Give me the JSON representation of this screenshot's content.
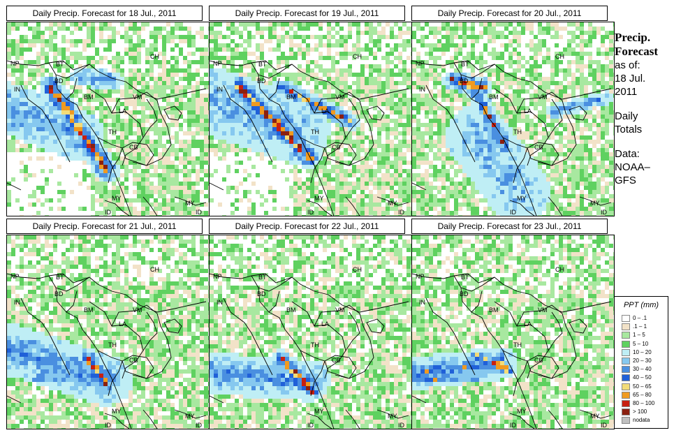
{
  "panels": [
    {
      "title": "Daily Precip. Forecast for  18 Jul., 2011",
      "pattern": "day18"
    },
    {
      "title": "Daily Precip. Forecast for  19 Jul., 2011",
      "pattern": "day19"
    },
    {
      "title": "Daily Precip. Forecast for  20 Jul., 2011",
      "pattern": "day20"
    },
    {
      "title": "Daily Precip. Forecast for  21 Jul., 2011",
      "pattern": "day21"
    },
    {
      "title": "Daily Precip. Forecast for  22 Jul., 2011",
      "pattern": "day22"
    },
    {
      "title": "Daily Precip. Forecast for  23 Jul., 2011",
      "pattern": "day23"
    }
  ],
  "region_labels": {
    "ch": "CH",
    "np": "NP",
    "bt": "BT",
    "bd": "BD",
    "in": "IN",
    "bm": "BM",
    "vm": "VM",
    "la": "LA",
    "th": "TH",
    "cb": "CB",
    "my": "MY",
    "my2": "MY",
    "id": "ID",
    "id2": "ID"
  },
  "side": {
    "title_line1": "Precip.",
    "title_line2": "Forecast",
    "asof": "as of:",
    "date1": "18 Jul.",
    "date2": "2011",
    "daily1": "Daily",
    "daily2": "Totals",
    "data1": "Data:",
    "data2": "NOAA–",
    "data3": "GFS"
  },
  "legend": {
    "title": "PPT (mm)",
    "items": [
      {
        "label": "0 – .1",
        "color": "#ffffff"
      },
      {
        "label": ".1 – 1",
        "color": "#f2e2c8"
      },
      {
        "label": "1 – 5",
        "color": "#a8e8a0"
      },
      {
        "label": "5 – 10",
        "color": "#5fd160"
      },
      {
        "label": "10 – 20",
        "color": "#bfeef5"
      },
      {
        "label": "20 – 30",
        "color": "#86c8ef"
      },
      {
        "label": "30 – 40",
        "color": "#4a8fe0"
      },
      {
        "label": "40 – 50",
        "color": "#2060d8"
      },
      {
        "label": "50 – 65",
        "color": "#f3dc78"
      },
      {
        "label": "65 – 80",
        "color": "#f09a20"
      },
      {
        "label": "80 – 100",
        "color": "#c82010"
      },
      {
        "label": "> 100",
        "color": "#8b2010"
      },
      {
        "label": "nodata",
        "color": "#c0c0c0"
      }
    ]
  }
}
